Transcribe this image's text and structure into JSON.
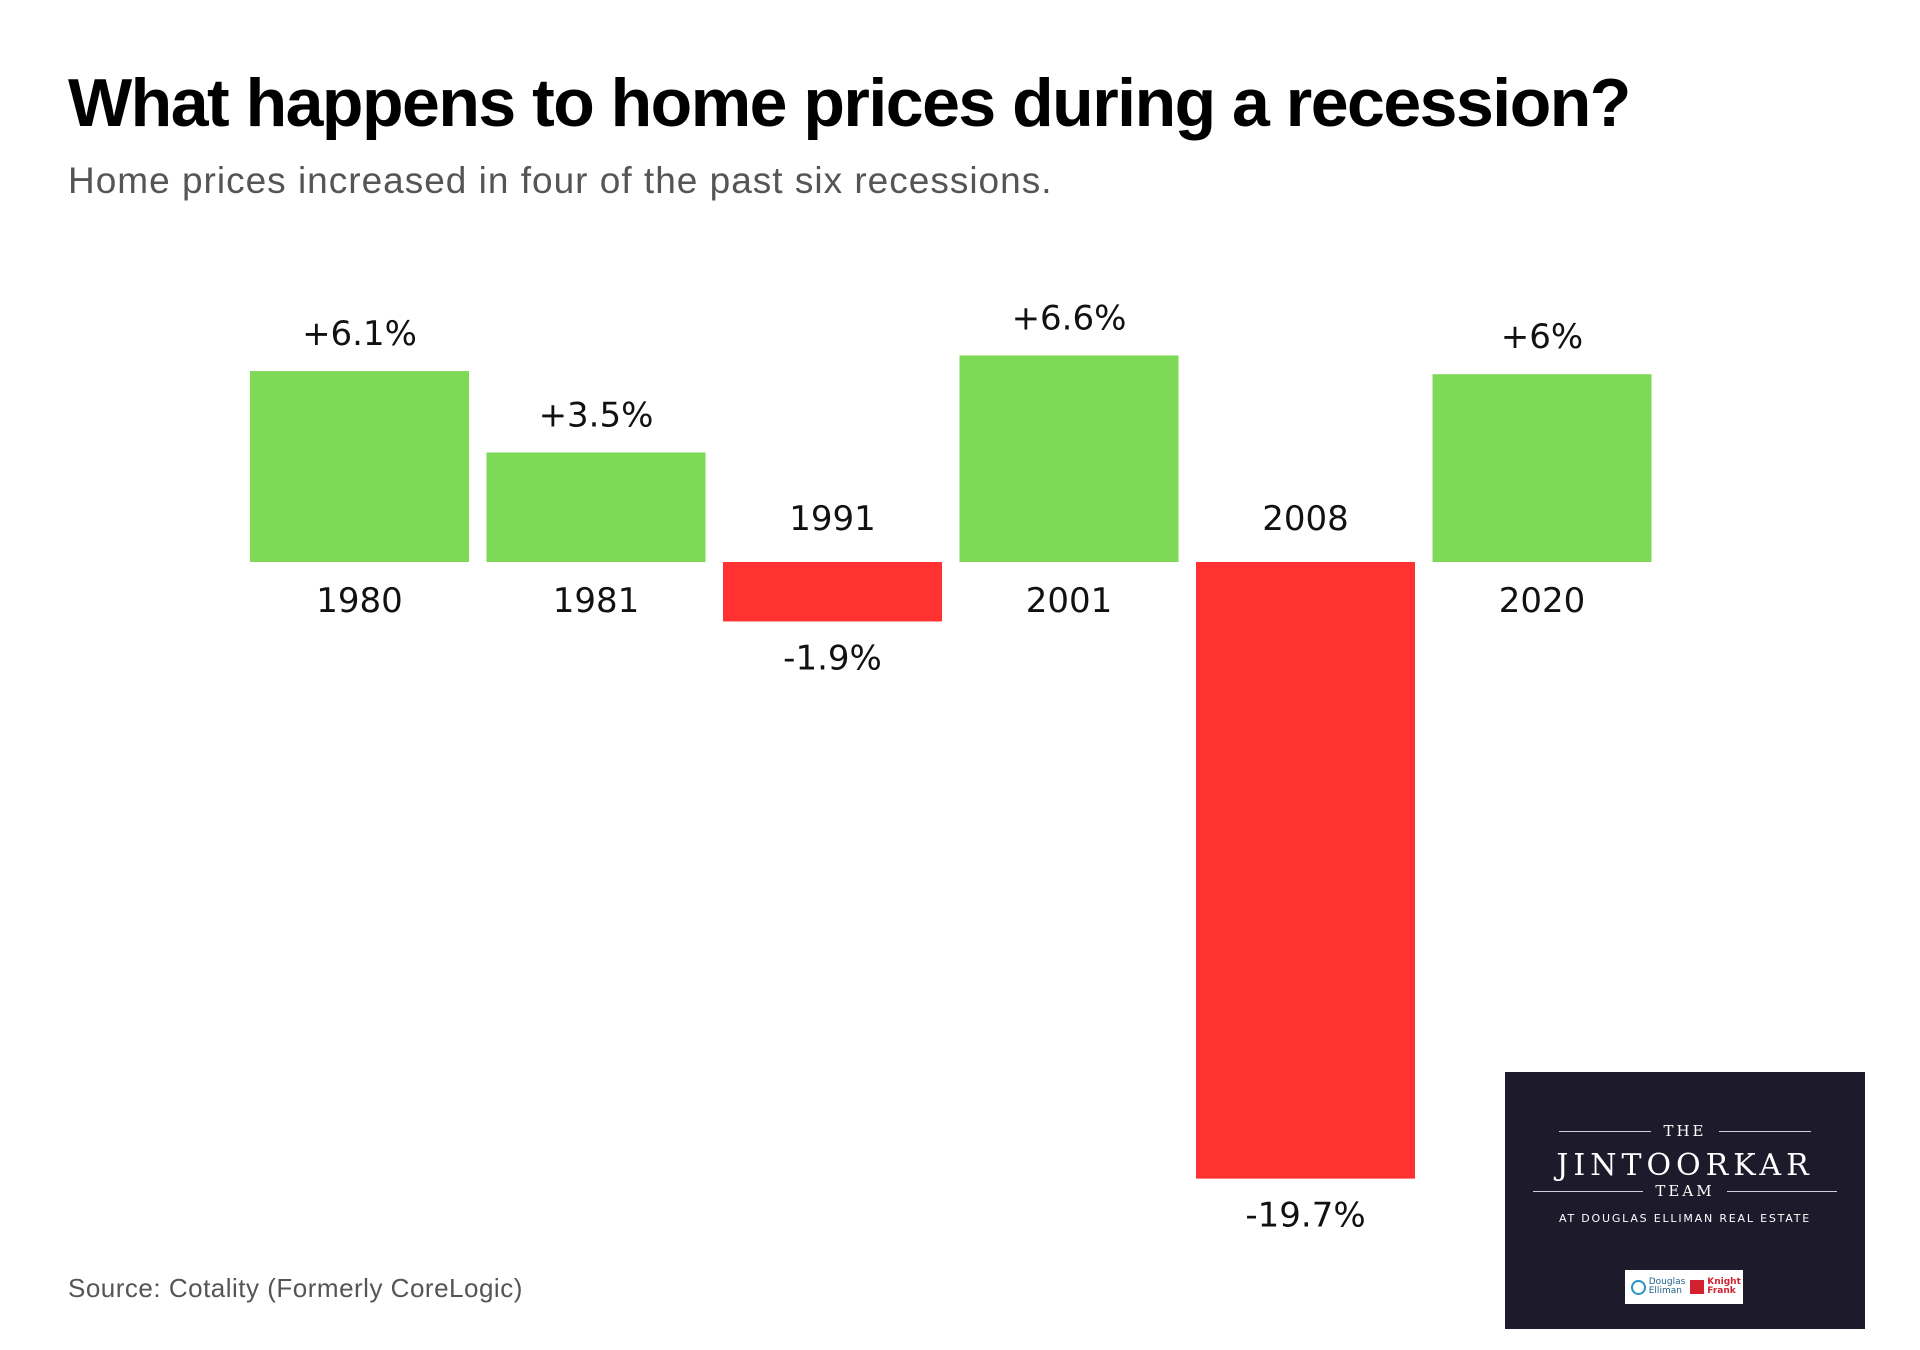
{
  "title": "What happens to home prices during a recession?",
  "subtitle": "Home prices increased in four of the past six recessions.",
  "source": "Source: Cotality (Formerly CoreLogic)",
  "colors": {
    "positive": "#7ed957",
    "negative": "#ff3131",
    "logo_bg": "#1c1a2b"
  },
  "logo": {
    "the": "THE",
    "name": "JINTOORKAR",
    "team": "TEAM",
    "tagline": "AT DOUGLAS ELLIMAN REAL ESTATE",
    "brand1": "Douglas Elliman",
    "brand2": "Knight Frank"
  },
  "chart_data": {
    "type": "bar",
    "categories": [
      "1980",
      "1981",
      "1991",
      "2001",
      "2008",
      "2020"
    ],
    "values": [
      6.1,
      3.5,
      -1.9,
      6.6,
      -19.7,
      6.0
    ],
    "data_labels": [
      "+6.1%",
      "+3.5%",
      "-1.9%",
      "+6.6%",
      "-19.7%",
      "+6%"
    ],
    "title": "What happens to home prices during a recession?",
    "subtitle": "Home prices increased in four of the past six recessions.",
    "grid": false,
    "legend": "none"
  }
}
